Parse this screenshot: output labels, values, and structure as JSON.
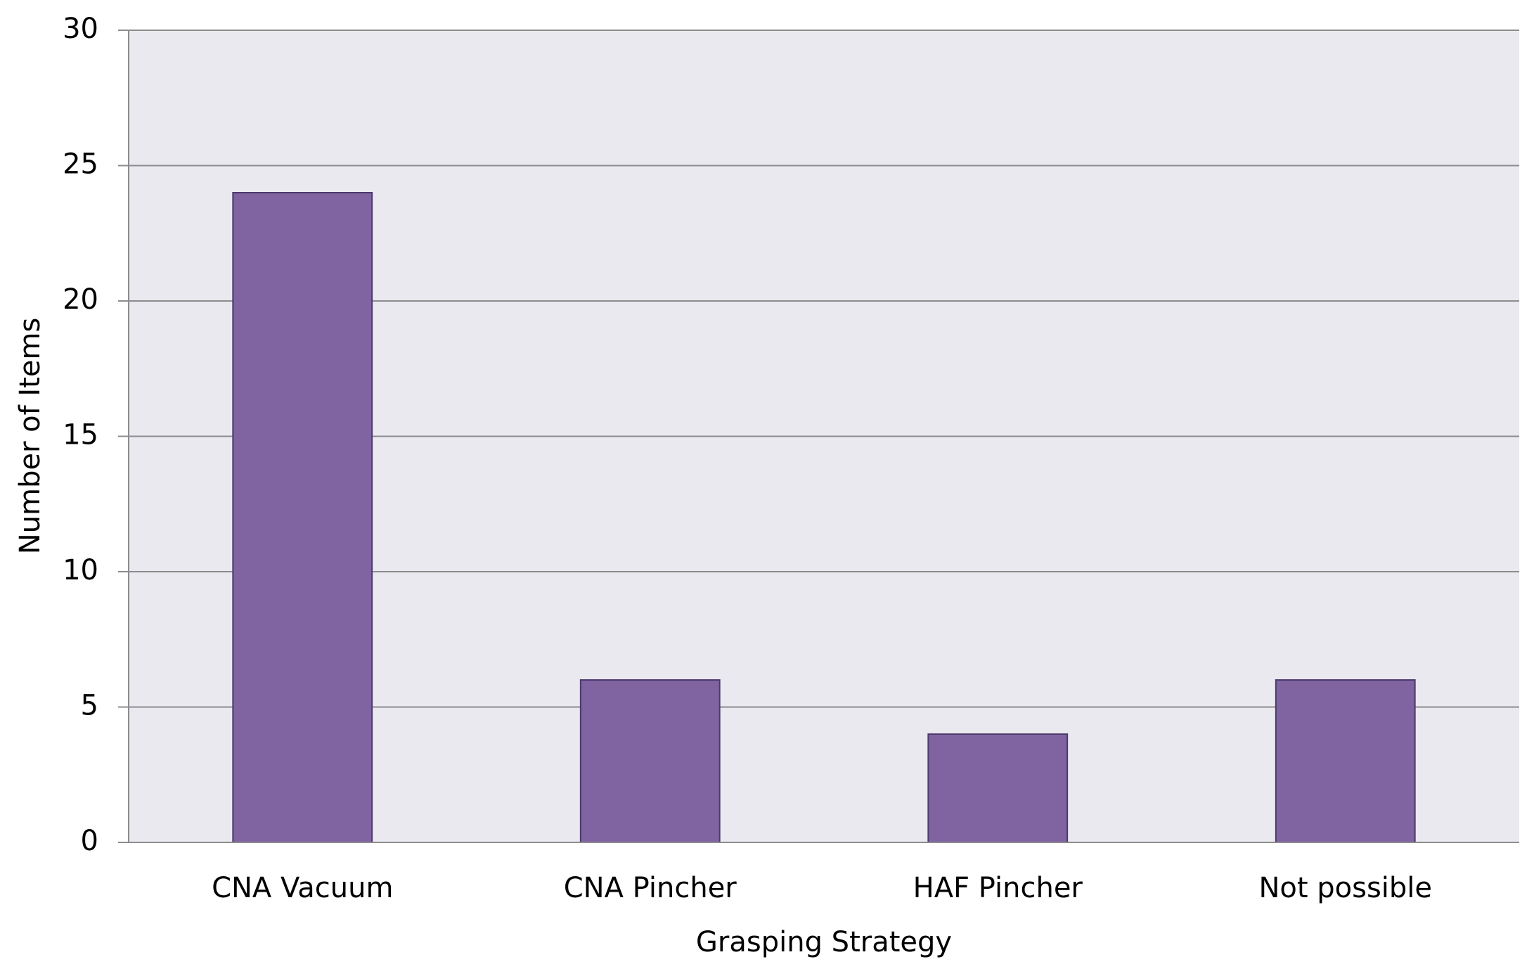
{
  "chart_data": {
    "type": "bar",
    "x_label": "Grasping Strategy",
    "y_label": "Number of Items",
    "categories": [
      "CNA Vacuum",
      "CNA Pincher",
      "HAF Pincher",
      "Not possible"
    ],
    "values": [
      24,
      6,
      4,
      6
    ],
    "color": "#8064a2",
    "ylim": [
      0,
      30
    ],
    "yticks": [
      0,
      5,
      10,
      15,
      20,
      25,
      30
    ],
    "grid": true
  }
}
